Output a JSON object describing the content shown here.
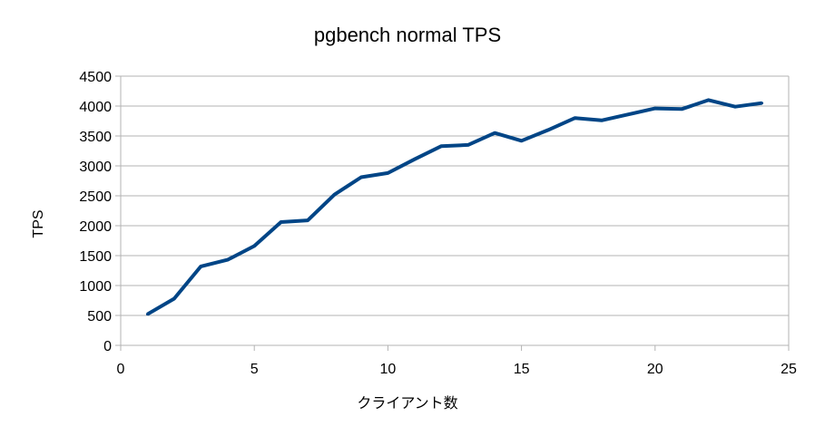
{
  "chart_data": {
    "type": "line",
    "title": "pgbench normal TPS",
    "xlabel": "クライアント数",
    "ylabel": "TPS",
    "xlim": [
      0,
      25
    ],
    "ylim": [
      0,
      4500
    ],
    "x_ticks": [
      0,
      5,
      10,
      15,
      20,
      25
    ],
    "y_ticks": [
      0,
      500,
      1000,
      1500,
      2000,
      2500,
      3000,
      3500,
      4000,
      4500
    ],
    "grid": true,
    "legend": "none",
    "line_color": "#004586",
    "series": [
      {
        "x": [
          1,
          2,
          3,
          4,
          5,
          6,
          7,
          8,
          9,
          10,
          11,
          12,
          13,
          14,
          15,
          16,
          17,
          18,
          19,
          20,
          21,
          22,
          23,
          24
        ],
        "values": [
          520,
          780,
          1320,
          1430,
          1660,
          2060,
          2090,
          2520,
          2810,
          2880,
          3110,
          3330,
          3350,
          3550,
          3420,
          3600,
          3800,
          3760,
          3860,
          3960,
          3950,
          4100,
          3990,
          4050
        ]
      }
    ]
  }
}
